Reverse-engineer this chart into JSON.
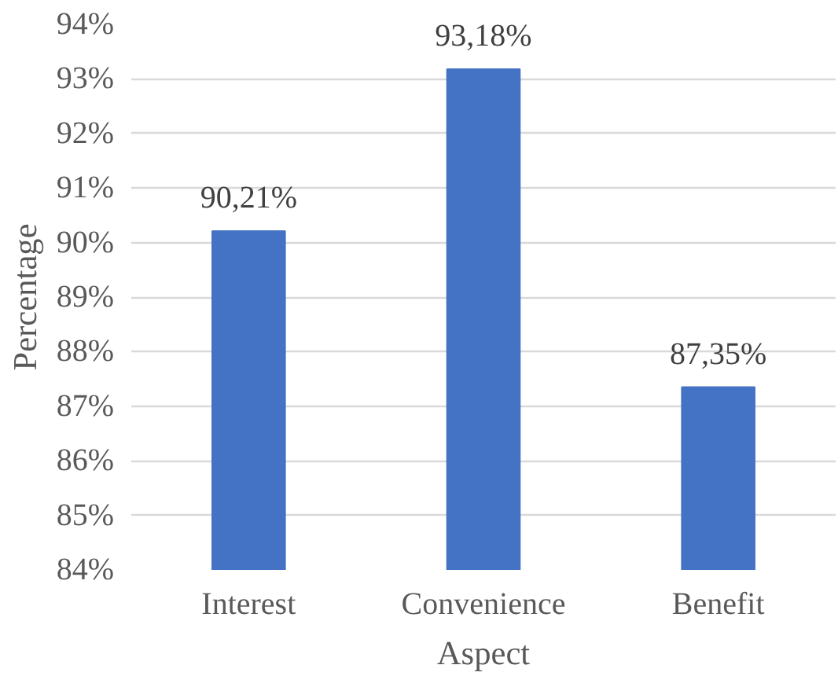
{
  "chart_data": {
    "type": "bar",
    "xlabel": "Aspect",
    "ylabel": "Percentage",
    "categories": [
      "Interest",
      "Convenience",
      "Benefit"
    ],
    "values": [
      90.21,
      93.18,
      87.35
    ],
    "value_labels": [
      "90,21%",
      "93,18%",
      "87,35%"
    ],
    "color": "#4472c4",
    "ylim": [
      84,
      94
    ],
    "yticks": [
      {
        "value": 84,
        "label": "84%"
      },
      {
        "value": 85,
        "label": "85%"
      },
      {
        "value": 86,
        "label": "86%"
      },
      {
        "value": 87,
        "label": "87%"
      },
      {
        "value": 88,
        "label": "88%"
      },
      {
        "value": 89,
        "label": "89%"
      },
      {
        "value": 90,
        "label": "90%"
      },
      {
        "value": 91,
        "label": "91%"
      },
      {
        "value": 92,
        "label": "92%"
      },
      {
        "value": 93,
        "label": "93%"
      },
      {
        "value": 94,
        "label": "94%"
      }
    ],
    "grid": "y"
  }
}
